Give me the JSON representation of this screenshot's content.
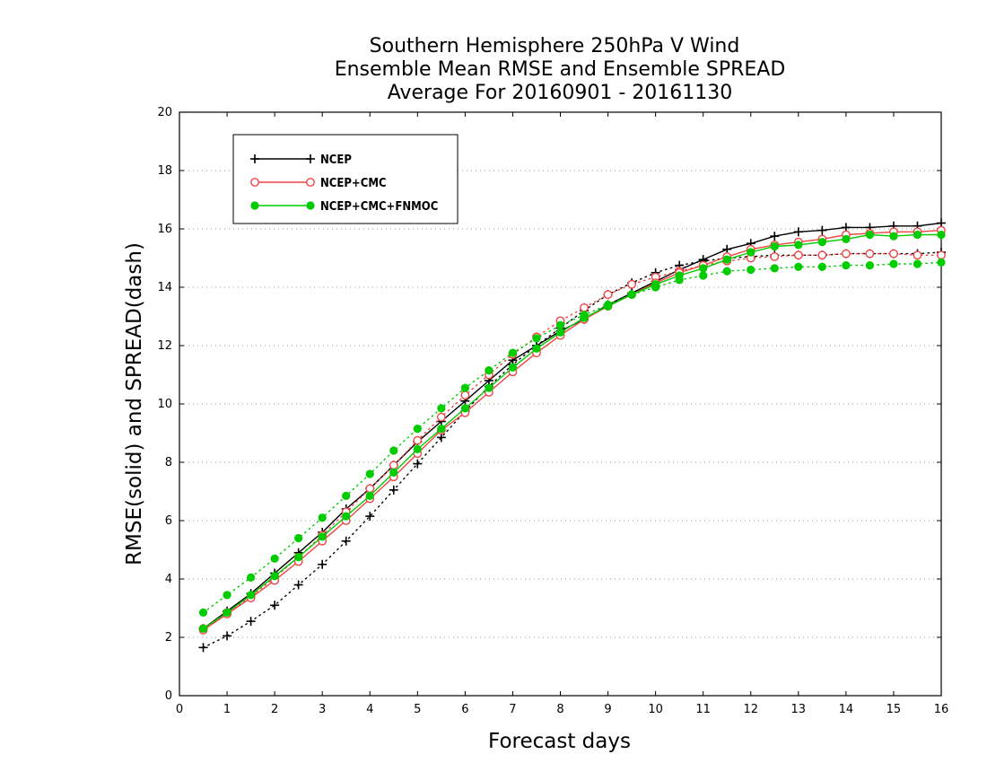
{
  "chart_data": {
    "type": "line",
    "title_lines": [
      "Southern Hemisphere 250hPa V Wind",
      "Ensemble Mean RMSE and Ensemble SPREAD",
      "Average For 20160901 - 20161130"
    ],
    "xlabel": "Forecast days",
    "ylabel": "RMSE(solid) and SPREAD(dash)",
    "xlim": [
      0,
      16
    ],
    "ylim": [
      0,
      20
    ],
    "xticks": [
      0,
      1,
      2,
      3,
      4,
      5,
      6,
      7,
      8,
      9,
      10,
      11,
      12,
      13,
      14,
      15,
      16
    ],
    "yticks": [
      0,
      2,
      4,
      6,
      8,
      10,
      12,
      14,
      16,
      18,
      20
    ],
    "grid": "horizontal dotted",
    "legend_position": "top-left",
    "x": [
      0.5,
      1,
      1.5,
      2,
      2.5,
      3,
      3.5,
      4,
      4.5,
      5,
      5.5,
      6,
      6.5,
      7,
      7.5,
      8,
      8.5,
      9,
      9.5,
      10,
      10.5,
      11,
      11.5,
      12,
      12.5,
      13,
      13.5,
      14,
      14.5,
      15,
      15.5,
      16
    ],
    "series": [
      {
        "name": "NCEP",
        "color": "#000000",
        "marker": "plus",
        "rmse": [
          2.3,
          2.9,
          3.5,
          4.2,
          4.9,
          5.6,
          6.4,
          7.1,
          7.9,
          8.7,
          9.4,
          10.1,
          10.8,
          11.5,
          12.0,
          12.5,
          12.9,
          13.4,
          13.8,
          14.2,
          14.6,
          14.95,
          15.3,
          15.5,
          15.75,
          15.9,
          15.95,
          16.05,
          16.05,
          16.1,
          16.1,
          16.2
        ],
        "spread": [
          1.65,
          2.05,
          2.55,
          3.1,
          3.8,
          4.5,
          5.3,
          6.15,
          7.05,
          7.95,
          8.85,
          9.75,
          10.6,
          11.35,
          12.0,
          12.6,
          13.2,
          13.75,
          14.15,
          14.5,
          14.75,
          14.9,
          15.0,
          15.05,
          15.1,
          15.1,
          15.1,
          15.15,
          15.15,
          15.15,
          15.15,
          15.2
        ]
      },
      {
        "name": "NCEP+CMC",
        "color": "#ee4444",
        "marker": "open-circle",
        "rmse": [
          2.25,
          2.8,
          3.35,
          3.95,
          4.6,
          5.3,
          6.0,
          6.75,
          7.5,
          8.3,
          9.1,
          9.7,
          10.4,
          11.1,
          11.75,
          12.35,
          12.9,
          13.35,
          13.75,
          14.15,
          14.5,
          14.75,
          15.05,
          15.3,
          15.45,
          15.55,
          15.65,
          15.8,
          15.85,
          15.9,
          15.9,
          15.95
        ],
        "spread": [
          2.3,
          2.85,
          3.4,
          4.05,
          4.75,
          5.5,
          6.3,
          7.1,
          7.9,
          8.75,
          9.55,
          10.3,
          11.0,
          11.7,
          12.3,
          12.85,
          13.3,
          13.75,
          14.1,
          14.35,
          14.55,
          14.75,
          14.9,
          15.0,
          15.05,
          15.1,
          15.1,
          15.15,
          15.15,
          15.15,
          15.1,
          15.1
        ]
      },
      {
        "name": "NCEP+CMC+FNMOC",
        "color": "#00cc00",
        "marker": "filled-circle",
        "rmse": [
          2.3,
          2.85,
          3.45,
          4.1,
          4.75,
          5.45,
          6.15,
          6.85,
          7.65,
          8.45,
          9.15,
          9.85,
          10.55,
          11.25,
          11.9,
          12.45,
          12.95,
          13.35,
          13.75,
          14.1,
          14.4,
          14.65,
          14.95,
          15.2,
          15.4,
          15.45,
          15.55,
          15.65,
          15.8,
          15.75,
          15.8,
          15.8
        ],
        "spread": [
          2.85,
          3.45,
          4.05,
          4.7,
          5.4,
          6.1,
          6.85,
          7.6,
          8.4,
          9.15,
          9.85,
          10.55,
          11.15,
          11.75,
          12.25,
          12.7,
          13.05,
          13.4,
          13.75,
          14.0,
          14.25,
          14.4,
          14.55,
          14.6,
          14.65,
          14.7,
          14.7,
          14.75,
          14.75,
          14.8,
          14.8,
          14.85
        ]
      }
    ]
  }
}
